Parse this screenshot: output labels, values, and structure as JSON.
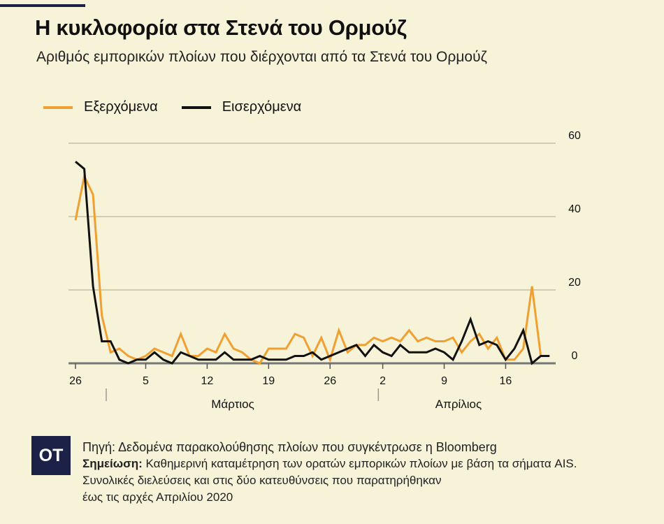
{
  "title": "Η κυκλοφορία στα Στενά του Ορμούζ",
  "subtitle": "Αριθμός εμπορικών πλοίων που διέρχονται από τα Στενά του Ορμούζ",
  "logo_text": "OT",
  "source": "Πηγή: Δεδομένα παρακολούθησης πλοίων που συγκέντρωσε η Bloomberg",
  "note_label": "Σημείωση:",
  "note_text": " Καθημερινή καταμέτρηση των ορατών εμπορικών πλοίων με βάση τα σήματα AIS.",
  "note_line2": "Συνολικές διελεύσεις και στις δύο κατευθύνσεις που παρατηρήθηκαν",
  "note_line3": "έως τις αρχές Απριλίου 2020",
  "chart_data": {
    "type": "line",
    "x_start": "26 Φεβ",
    "x_tick_labels": [
      "26",
      "5",
      "12",
      "19",
      "26",
      "2",
      "9",
      "16"
    ],
    "month_labels": [
      "Μάρτιος",
      "Απρίλιος"
    ],
    "y_ticks": [
      0,
      20,
      40,
      60
    ],
    "ylim": [
      0,
      60
    ],
    "grid": true,
    "legend": "top-left",
    "y_axis_side": "right",
    "series": [
      {
        "name": "Εξερχόμενα",
        "color": "#f0a030",
        "values": [
          39,
          51,
          46,
          13,
          3,
          4,
          2,
          1,
          2,
          4,
          3,
          2,
          8,
          2,
          2,
          4,
          3,
          8,
          4,
          3,
          1,
          0,
          4,
          4,
          4,
          8,
          7,
          2,
          7,
          1,
          9,
          3,
          5,
          5,
          7,
          6,
          7,
          6,
          9,
          6,
          7,
          6,
          6,
          7,
          3,
          6,
          8,
          4,
          7,
          1,
          1,
          4,
          21,
          2,
          2
        ]
      },
      {
        "name": "Εισερχόμενα",
        "color": "#111111",
        "values": [
          55,
          53,
          21,
          6,
          6,
          1,
          0,
          1,
          1,
          3,
          1,
          0,
          3,
          2,
          1,
          1,
          1,
          3,
          1,
          1,
          1,
          2,
          1,
          1,
          1,
          2,
          2,
          3,
          1,
          2,
          3,
          4,
          5,
          2,
          5,
          3,
          2,
          5,
          3,
          3,
          3,
          4,
          3,
          1,
          6,
          12,
          5,
          6,
          5,
          1,
          4,
          9,
          0,
          2,
          2
        ]
      }
    ]
  }
}
